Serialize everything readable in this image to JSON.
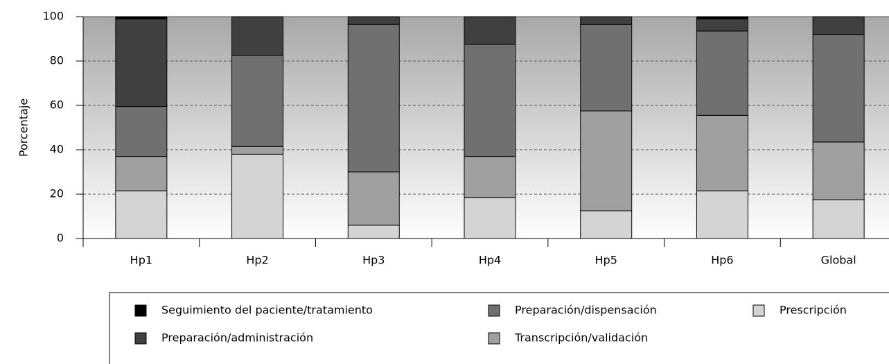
{
  "chart_data": {
    "type": "bar",
    "stacked": true,
    "y_label": "Porcentaje",
    "categories": [
      "Hp1",
      "Hp2",
      "Hp3",
      "Hp4",
      "Hp5",
      "Hp6",
      "Global"
    ],
    "series": [
      {
        "name": "Prescripción",
        "color": "#d4d4d4",
        "values": [
          21.5,
          38,
          6,
          18.5,
          12.5,
          21.5,
          17.5
        ]
      },
      {
        "name": "Transcripción/validación",
        "color": "#a0a0a0",
        "values": [
          15.5,
          3.5,
          24,
          18.5,
          45,
          34,
          26
        ]
      },
      {
        "name": "Preparación/dispensación",
        "color": "#707070",
        "values": [
          22.5,
          41,
          66.5,
          50.5,
          39,
          38,
          48.5
        ]
      },
      {
        "name": "Preparación/administración",
        "color": "#404040",
        "values": [
          39.5,
          17.5,
          3.5,
          12.5,
          3.5,
          5.5,
          8
        ]
      },
      {
        "name": "Seguimiento del paciente/tratamiento",
        "color": "#000000",
        "values": [
          1,
          0,
          0,
          0,
          0,
          1,
          0
        ]
      }
    ],
    "ylim": [
      0,
      100
    ],
    "yticks": [
      0,
      20,
      40,
      60,
      80,
      100
    ],
    "grid": true
  }
}
